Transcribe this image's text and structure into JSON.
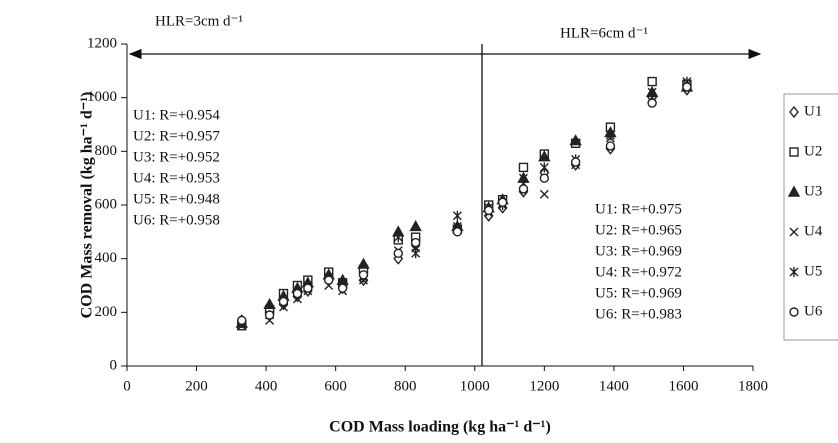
{
  "chart_data": {
    "type": "scatter",
    "xlabel": "COD Mass loading (kg ha⁻¹ d⁻¹)",
    "ylabel": "COD Mass removal (kg ha⁻¹ d⁻¹)",
    "annotations": {
      "left_region": "HLR=3cm d⁻¹",
      "right_region": "HLR=6cm d⁻¹",
      "left_stats": [
        "U1: R=+0.954",
        "U2: R=+0.957",
        "U3: R=+0.952",
        "U4: R=+0.953",
        "U5: R=+0.948",
        "U6: R=+0.958"
      ],
      "right_stats": [
        "U1: R=+0.975",
        "U2: R=+0.965",
        "U3: R=+0.969",
        "U4: R=+0.972",
        "U5: R=+0.969",
        "U6: R=+0.983"
      ]
    },
    "x": [
      330,
      410,
      450,
      490,
      520,
      580,
      620,
      680,
      780,
      830,
      950,
      1040,
      1080,
      1140,
      1200,
      1290,
      1390,
      1510,
      1610
    ],
    "series": [
      {
        "name": "U1",
        "color": "#222222",
        "marker": "diamond",
        "values": [
          170,
          200,
          230,
          260,
          280,
          320,
          290,
          320,
          400,
          450,
          510,
          560,
          590,
          650,
          720,
          750,
          810,
          1000,
          1030
        ]
      },
      {
        "name": "U2",
        "color": "#222222",
        "marker": "square",
        "values": [
          150,
          210,
          270,
          300,
          320,
          350,
          310,
          360,
          470,
          480,
          510,
          600,
          620,
          740,
          790,
          830,
          890,
          1060,
          1050
        ]
      },
      {
        "name": "U3",
        "color": "#222222",
        "marker": "triangle",
        "values": [
          160,
          230,
          260,
          290,
          310,
          340,
          320,
          380,
          500,
          520,
          520,
          590,
          620,
          700,
          780,
          840,
          870,
          1020,
          1040
        ]
      },
      {
        "name": "U4",
        "color": "#222222",
        "marker": "x",
        "values": [
          150,
          170,
          220,
          250,
          280,
          300,
          280,
          320,
          430,
          440,
          520,
          570,
          600,
          680,
          640,
          750,
          850,
          1020,
          1050
        ]
      },
      {
        "name": "U5",
        "color": "#222222",
        "marker": "asterisk",
        "values": [
          160,
          190,
          240,
          270,
          300,
          330,
          300,
          330,
          480,
          420,
          560,
          590,
          600,
          700,
          740,
          770,
          860,
          1000,
          1060
        ]
      },
      {
        "name": "U6",
        "color": "#222222",
        "marker": "circle",
        "values": [
          170,
          190,
          240,
          270,
          290,
          320,
          290,
          340,
          420,
          460,
          500,
          580,
          610,
          660,
          700,
          760,
          820,
          980,
          1040
        ]
      }
    ],
    "xlim": [
      0,
      1800
    ],
    "xticks": [
      0,
      200,
      400,
      600,
      800,
      1000,
      1200,
      1400,
      1600,
      1800
    ],
    "ylim": [
      0,
      1200
    ],
    "yticks": [
      0,
      200,
      400,
      600,
      800,
      1000,
      1200
    ],
    "grid": false,
    "legend": "right"
  }
}
